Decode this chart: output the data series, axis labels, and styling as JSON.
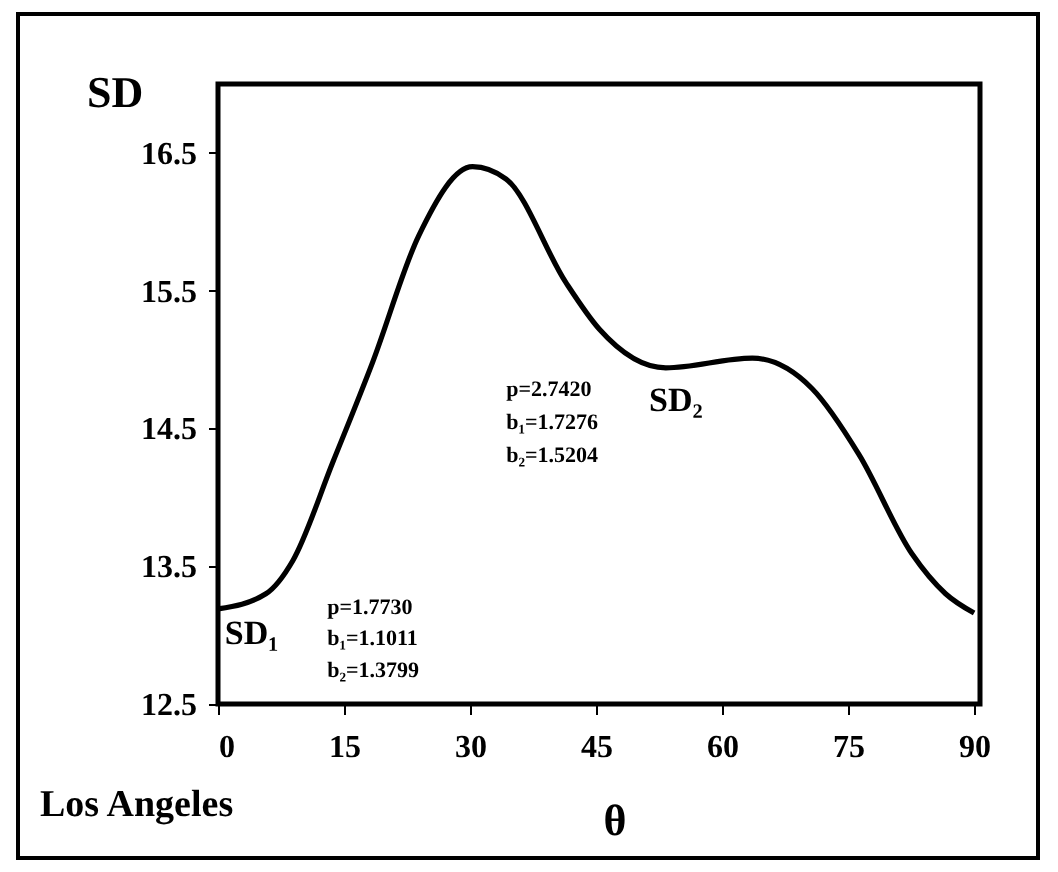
{
  "chart_data": {
    "type": "line",
    "xlabel": "θ",
    "ylabel": "SD",
    "x": [
      0,
      5.7,
      8.9,
      13.7,
      18.4,
      23.9,
      30.3,
      34.3,
      41.4,
      45.4,
      53.3,
      63.6,
      70.7,
      76.3,
      82.6,
      86.6,
      90
    ],
    "series": [
      {
        "color": "#000000",
        "values": [
          13.19,
          13.3,
          13.54,
          14.26,
          14.98,
          15.9,
          16.4,
          16.31,
          15.56,
          15.22,
          14.94,
          15.01,
          14.79,
          14.31,
          13.59,
          13.3,
          13.16
        ]
      }
    ],
    "xlim": [
      0,
      90.7
    ],
    "xticks": [
      0,
      15,
      30,
      45,
      60,
      75,
      90
    ],
    "ylim": [
      12.5,
      17
    ],
    "yticks": [
      12.5,
      13.5,
      14.5,
      15.5,
      16.5
    ],
    "grid": false,
    "marker": "none",
    "line_style": "solid",
    "annotations": [
      "SD₁",
      "SD₂",
      "p=1.7730",
      "b₁=1.1011",
      "b₂=1.3799",
      "p=2.7420",
      "b₁=1.7276",
      "b₂=1.5204",
      "Los Angeles"
    ]
  }
}
